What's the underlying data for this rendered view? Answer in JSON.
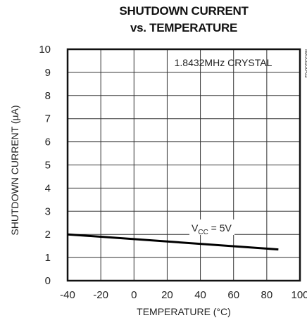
{
  "chart_data": {
    "type": "line",
    "title_line1": "SHUTDOWN CURRENT",
    "title_line2": "vs. TEMPERATURE",
    "xlabel": "TEMPERATURE (°C)",
    "ylabel": "SHUTDOWN CURRENT (µA)",
    "xlim": [
      -40,
      100
    ],
    "ylim": [
      0,
      10
    ],
    "xticks": [
      -40,
      -20,
      0,
      20,
      40,
      60,
      80,
      100
    ],
    "yticks": [
      0,
      1,
      2,
      3,
      4,
      5,
      6,
      7,
      8,
      9,
      10
    ],
    "grid": true,
    "annotation": "1.8432MHz CRYSTAL",
    "figure_id": "MAX3100-02",
    "series": [
      {
        "label_main": "V",
        "label_sub": "CC",
        "label_rest": " = 5V",
        "x": [
          -40,
          87
        ],
        "y": [
          2.0,
          1.35
        ]
      }
    ]
  }
}
